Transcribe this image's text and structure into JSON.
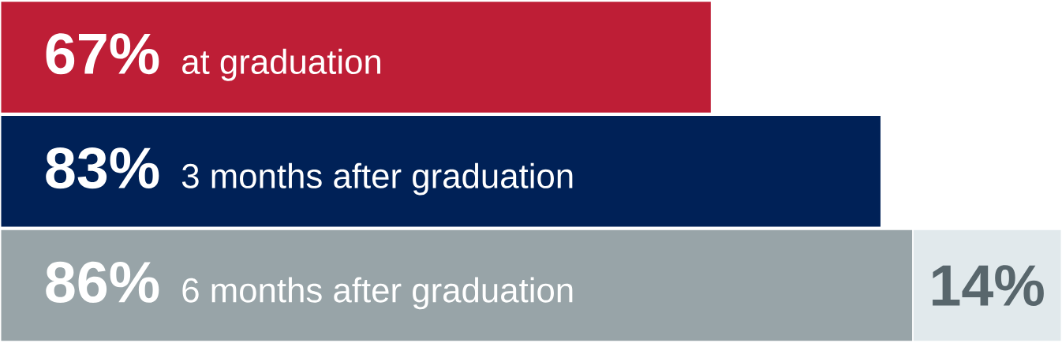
{
  "chart_data": {
    "type": "bar",
    "orientation": "horizontal",
    "stacked": true,
    "categories": [
      "at graduation",
      "3 months after graduation",
      "6 months after graduation"
    ],
    "xlim": [
      0,
      100
    ],
    "tick_labels": false,
    "series": [
      {
        "colors": [
          "#be1e36",
          "#002157",
          "#98a4a8"
        ],
        "values": [
          67,
          83,
          86
        ],
        "value_labels": [
          "67%",
          "83%",
          "86%"
        ]
      },
      {
        "color": "#e1e9ec",
        "values": [
          null,
          null,
          14
        ],
        "value_labels": [
          null,
          null,
          "14%"
        ]
      }
    ]
  }
}
